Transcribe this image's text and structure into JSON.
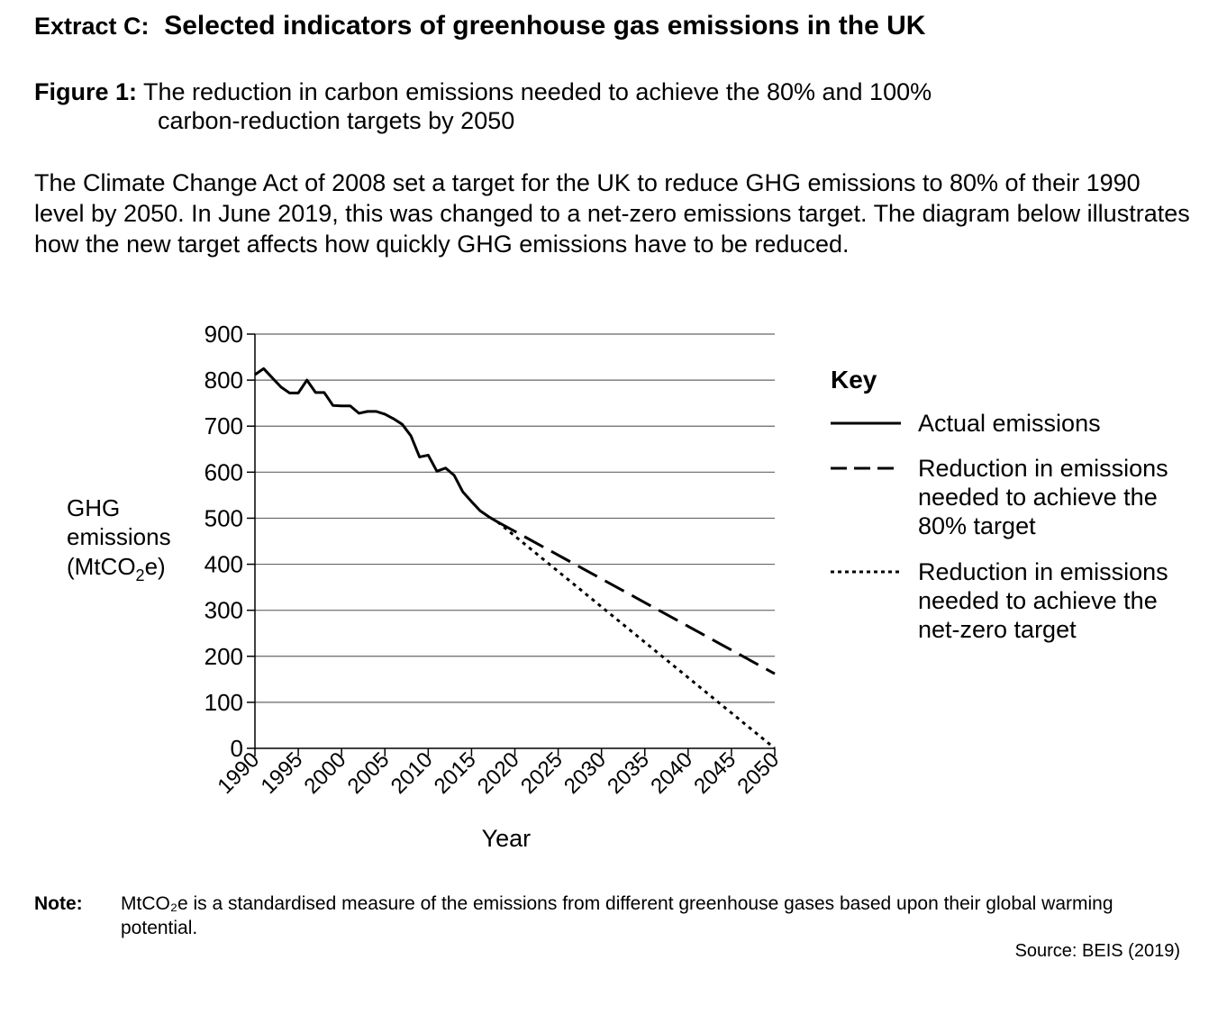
{
  "extract_label": "Extract C:",
  "extract_title": "Selected indicators of greenhouse gas emissions in the UK",
  "figure_label": "Figure 1:",
  "figure_caption_line1": "The reduction in carbon emissions needed to achieve the 80% and 100%",
  "figure_caption_line2": "carbon-reduction targets by 2050",
  "intro_text": "The Climate Change Act of 2008 set a target for the UK to reduce GHG emissions to 80% of their 1990 level by 2050.  In June 2019, this was changed to a net-zero emissions target.  The diagram below illustrates how the new target affects how quickly GHG emissions have to be reduced.",
  "note_label": "Note:",
  "note_text": "MtCO₂e is a standardised measure of the emissions from different greenhouse gases based upon their global warming potential.",
  "source": "Source: BEIS (2019)",
  "chart_data": {
    "type": "line",
    "ylabel_lines": [
      "GHG",
      "emissions",
      "(MtCO",
      "2",
      "e)"
    ],
    "xlabel": "Year",
    "xlim": [
      1990,
      2050
    ],
    "ylim": [
      0,
      900
    ],
    "xticks": [
      1990,
      1995,
      2000,
      2005,
      2010,
      2015,
      2020,
      2025,
      2030,
      2035,
      2040,
      2045,
      2050
    ],
    "yticks": [
      0,
      100,
      200,
      300,
      400,
      500,
      600,
      700,
      800,
      900
    ],
    "grid": "horizontal",
    "key_title": "Key",
    "series": [
      {
        "name": "Actual emissions",
        "style": "solid",
        "x": [
          1990,
          1991,
          1992,
          1993,
          1994,
          1995,
          1996,
          1997,
          1998,
          1999,
          2000,
          2001,
          2002,
          2003,
          2004,
          2005,
          2006,
          2007,
          2008,
          2009,
          2010,
          2011,
          2012,
          2013,
          2014,
          2015,
          2016,
          2017,
          2018
        ],
        "y": [
          812,
          825,
          805,
          785,
          772,
          772,
          800,
          773,
          773,
          745,
          744,
          744,
          728,
          732,
          732,
          726,
          716,
          704,
          679,
          633,
          637,
          602,
          609,
          593,
          557,
          536,
          516,
          503,
          492
        ]
      },
      {
        "name": "Reduction in emissions needed to achieve the 80% target",
        "style": "dashed",
        "x": [
          2018,
          2050
        ],
        "y": [
          492,
          162
        ]
      },
      {
        "name": "Reduction in emissions needed to achieve the net-zero target",
        "style": "dotted",
        "x": [
          2018,
          2050
        ],
        "y": [
          492,
          0
        ]
      }
    ],
    "legend_position": "right",
    "legend": [
      {
        "style": "solid",
        "lines": [
          "Actual emissions"
        ]
      },
      {
        "style": "dashed",
        "lines": [
          "Reduction in emissions",
          "needed to achieve the",
          "80% target"
        ]
      },
      {
        "style": "dotted",
        "lines": [
          "Reduction in emissions",
          "needed to achieve the",
          "net-zero target"
        ]
      }
    ]
  }
}
